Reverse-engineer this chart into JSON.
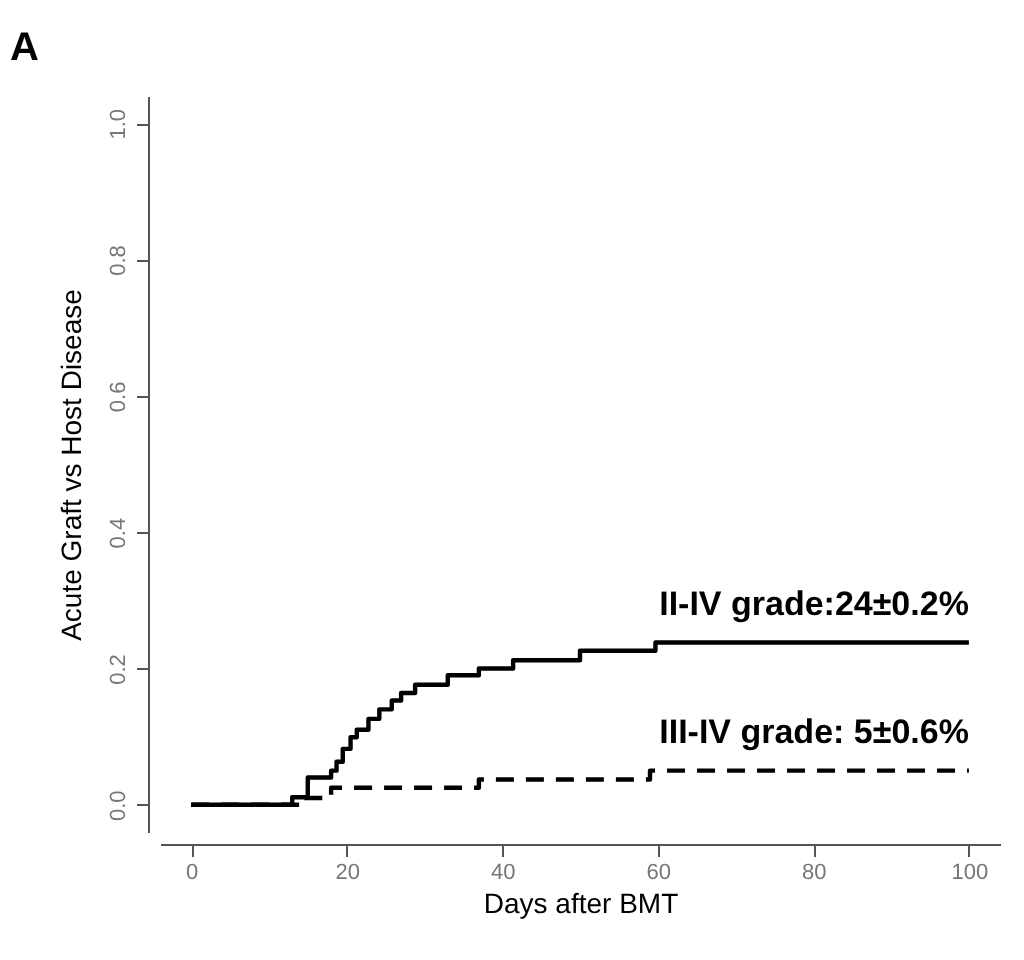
{
  "chart_data": {
    "type": "step",
    "title": "A",
    "xlabel": "Days after BMT",
    "ylabel": "Acute Graft vs Host Disease",
    "xlim": [
      -4,
      104
    ],
    "ylim": [
      -0.04,
      1.04
    ],
    "xticks": [
      0,
      20,
      40,
      60,
      80,
      100
    ],
    "yticks": [
      {
        "value": 0,
        "label": "0.0"
      },
      {
        "value": 0.2,
        "label": "0.2"
      },
      {
        "value": 0.4,
        "label": "0.4"
      },
      {
        "value": 0.6,
        "label": "0.6"
      },
      {
        "value": 0.8,
        "label": "0.8"
      },
      {
        "value": 1,
        "label": "1.0"
      }
    ],
    "grid": false,
    "legend": false,
    "marker": "none",
    "series": [
      {
        "name": "II-IV grade:24±0.2%",
        "color": "#000000",
        "line_style": "solid",
        "x": [
          0,
          13,
          15,
          18,
          18.7,
          19.5,
          20.5,
          21.3,
          22.8,
          24.2,
          25.8,
          27,
          28.8,
          33,
          37,
          41.4,
          50,
          59.7,
          100
        ],
        "values": [
          0,
          0.011,
          0.04,
          0.05,
          0.063,
          0.082,
          0.099,
          0.11,
          0.126,
          0.14,
          0.153,
          0.164,
          0.176,
          0.19,
          0.2,
          0.212,
          0.226,
          0.238,
          0.238
        ]
      },
      {
        "name": "III-IV grade: 5±0.6%",
        "color": "#000000",
        "line_style": "dashed",
        "x": [
          0,
          14,
          18,
          37,
          59,
          100
        ],
        "values": [
          0,
          0.01,
          0.025,
          0.037,
          0.05,
          0.05
        ]
      }
    ]
  }
}
